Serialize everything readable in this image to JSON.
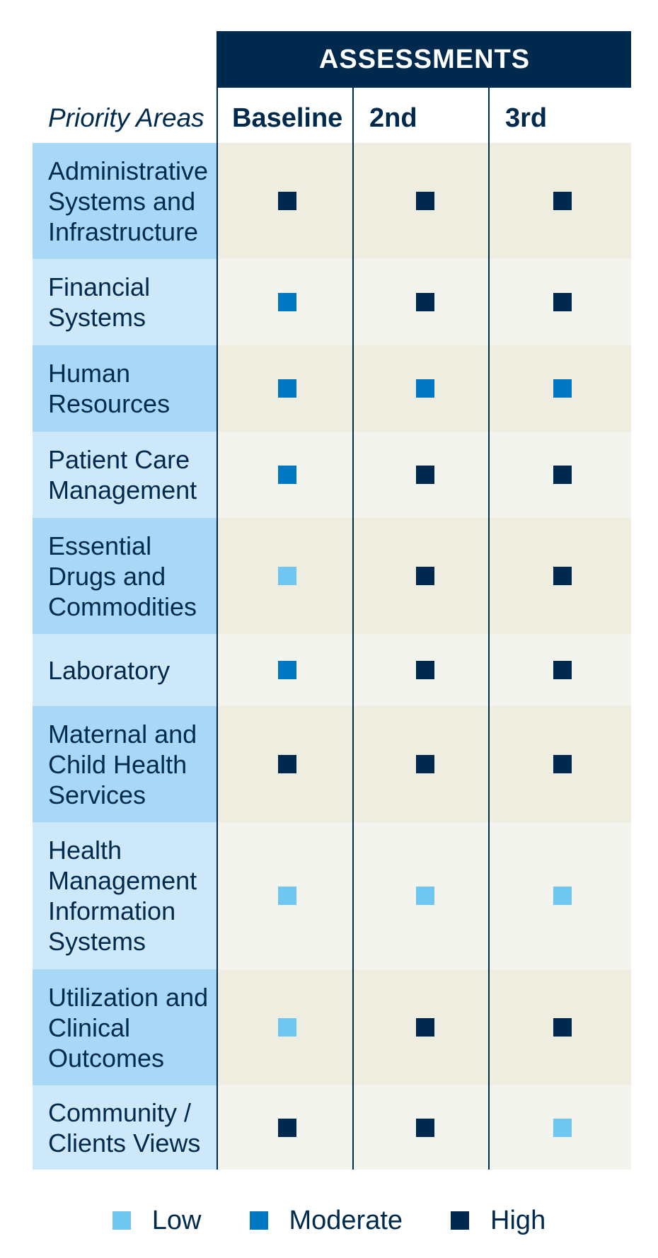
{
  "header": {
    "title": "ASSESSMENTS",
    "areas_heading": "Priority Areas"
  },
  "colors": {
    "Low": "#6ec6f1",
    "Moderate": "#0077c2",
    "High": "#002a4d"
  },
  "chart_data": {
    "type": "table",
    "title": "ASSESSMENTS",
    "row_heading": "Priority Areas",
    "columns": [
      "Baseline",
      "2nd",
      "3rd"
    ],
    "rows": [
      {
        "label": "Administrative Systems and Infrastructure",
        "values": [
          "High",
          "High",
          "High"
        ]
      },
      {
        "label": "Financial Systems",
        "values": [
          "Moderate",
          "High",
          "High"
        ]
      },
      {
        "label": "Human Resources",
        "values": [
          "Moderate",
          "Moderate",
          "Moderate"
        ]
      },
      {
        "label": "Patient Care Management",
        "values": [
          "Moderate",
          "High",
          "High"
        ]
      },
      {
        "label": "Essential Drugs and Commodities",
        "values": [
          "Low",
          "High",
          "High"
        ]
      },
      {
        "label": "Laboratory",
        "values": [
          "Moderate",
          "High",
          "High"
        ]
      },
      {
        "label": "Maternal and Child Health Services",
        "values": [
          "High",
          "High",
          "High"
        ]
      },
      {
        "label": "Health Management Information Systems",
        "values": [
          "Low",
          "Low",
          "Low"
        ]
      },
      {
        "label": "Utilization and Clinical Outcomes",
        "values": [
          "Low",
          "High",
          "High"
        ]
      },
      {
        "label": "Community / Clients Views",
        "values": [
          "High",
          "High",
          "Low"
        ]
      }
    ],
    "legend": [
      "Low",
      "Moderate",
      "High"
    ]
  }
}
